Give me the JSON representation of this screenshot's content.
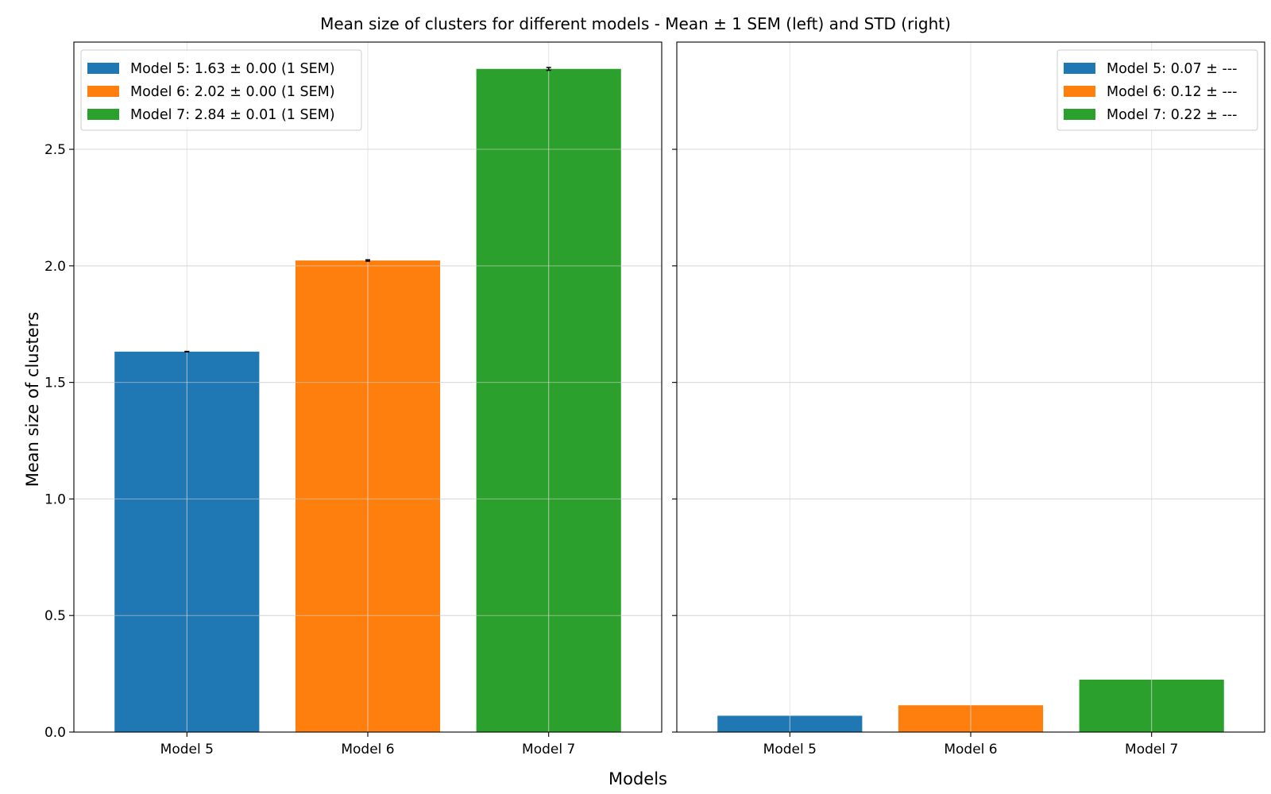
{
  "chart_data": {
    "type": "bar",
    "title": "Mean size of clusters for different models - Mean ± 1 SEM (left) and STD (right)",
    "xlabel": "Models",
    "ylabel": "Mean size of clusters",
    "ylim": [
      0,
      3.0
    ],
    "yticks": [
      0.0,
      0.5,
      1.0,
      1.5,
      2.0,
      2.5
    ],
    "grid": true,
    "shared_y": true,
    "categories": [
      "Model 5",
      "Model 6",
      "Model 7"
    ],
    "colors": [
      "#1f77b4",
      "#ff7f0e",
      "#2ca02c"
    ],
    "panels": [
      {
        "position": "left",
        "values": [
          1.632,
          2.023,
          2.845
        ],
        "errors": [
          0.001,
          0.003,
          0.006
        ],
        "legend_position": "top-left",
        "legend": [
          "Model 5: 1.63 ± 0.00 (1 SEM)",
          "Model 6: 2.02 ± 0.00 (1 SEM)",
          "Model 7: 2.84 ± 0.01 (1 SEM)"
        ]
      },
      {
        "position": "right",
        "values": [
          0.07,
          0.115,
          0.225
        ],
        "errors": [],
        "legend_position": "top-right",
        "legend": [
          "Model 5: 0.07 ± ---",
          "Model 6: 0.12 ± ---",
          "Model 7: 0.22 ± ---"
        ]
      }
    ]
  }
}
